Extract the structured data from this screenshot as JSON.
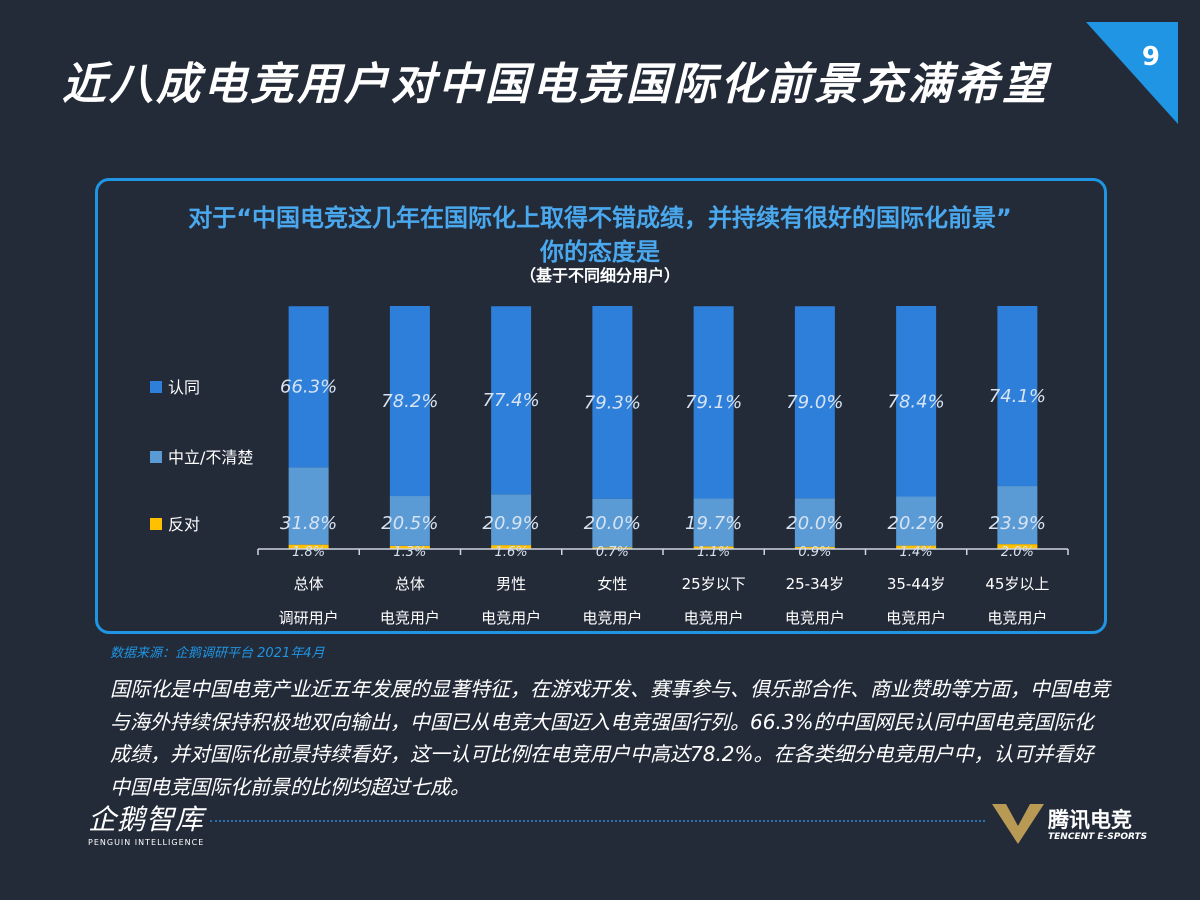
{
  "header": {
    "title": "近八成电竞用户对中国电竞国际化前景充满希望",
    "page_number": "9"
  },
  "chart_panel": {
    "question_line1": "对于“中国电竞这几年在国际化上取得不错成绩，并持续有很好的国际化前景”",
    "question_line2": "你的态度是",
    "question_note": "（基于不同细分用户）"
  },
  "chart_data": {
    "type": "bar",
    "stacked": true,
    "categories": [
      [
        "总体",
        "调研用户"
      ],
      [
        "总体",
        "电竞用户"
      ],
      [
        "男性",
        "电竞用户"
      ],
      [
        "女性",
        "电竞用户"
      ],
      [
        "25岁以下",
        "电竞用户"
      ],
      [
        "25-34岁",
        "电竞用户"
      ],
      [
        "35-44岁",
        "电竞用户"
      ],
      [
        "45岁以上",
        "电竞用户"
      ]
    ],
    "series": [
      {
        "name": "反对",
        "color": "#ffc000",
        "values": [
          1.8,
          1.3,
          1.6,
          0.7,
          1.1,
          0.9,
          1.4,
          2.0
        ],
        "labels": [
          "1.8%",
          "1.3%",
          "1.6%",
          "0.7%",
          "1.1%",
          "0.9%",
          "1.4%",
          "2.0%"
        ]
      },
      {
        "name": "中立/不清楚",
        "color": "#5b9bd5",
        "values": [
          31.8,
          20.5,
          20.9,
          20.0,
          19.7,
          20.0,
          20.2,
          23.9
        ],
        "labels": [
          "31.8%",
          "20.5%",
          "20.9%",
          "20.0%",
          "19.7%",
          "20.0%",
          "20.2%",
          "23.9%"
        ]
      },
      {
        "name": "认同",
        "color": "#2e7fd9",
        "values": [
          66.3,
          78.2,
          77.4,
          79.3,
          79.1,
          79.0,
          78.4,
          74.1
        ],
        "labels": [
          "66.3%",
          "78.2%",
          "77.4%",
          "79.3%",
          "79.1%",
          "79.0%",
          "78.4%",
          "74.1%"
        ]
      }
    ],
    "legend": {
      "placement": "left",
      "order": [
        "认同",
        "中立/不清楚",
        "反对"
      ]
    },
    "ylim": [
      0,
      100
    ],
    "grid": false
  },
  "source": "数据来源：企鹅调研平台 2021年4月",
  "paragraph": "国际化是中国电竞产业近五年发展的显著特征，在游戏开发、赛事参与、俱乐部合作、商业赞助等方面，中国电竞与海外持续保持积极地双向输出，中国已从电竞大国迈入电竞强国行列。66.3%的中国网民认同中国电竞国际化成绩，并对国际化前景持续看好，这一认可比例在电竞用户中高达78.2%。在各类细分电竞用户中，认可并看好中国电竞国际化前景的比例均超过七成。",
  "footer": {
    "left_logo_text": "企鹅智库",
    "left_logo_sub": "PENGUIN INTELLIGENCE",
    "right_logo_text": "腾讯电竞",
    "right_logo_sub": "TENCENT E-SPORTS"
  },
  "colors": {
    "background": "#232a38",
    "accent": "#1f95e3",
    "agree": "#2e7fd9",
    "neutral": "#5b9bd5",
    "oppose": "#ffc000"
  }
}
